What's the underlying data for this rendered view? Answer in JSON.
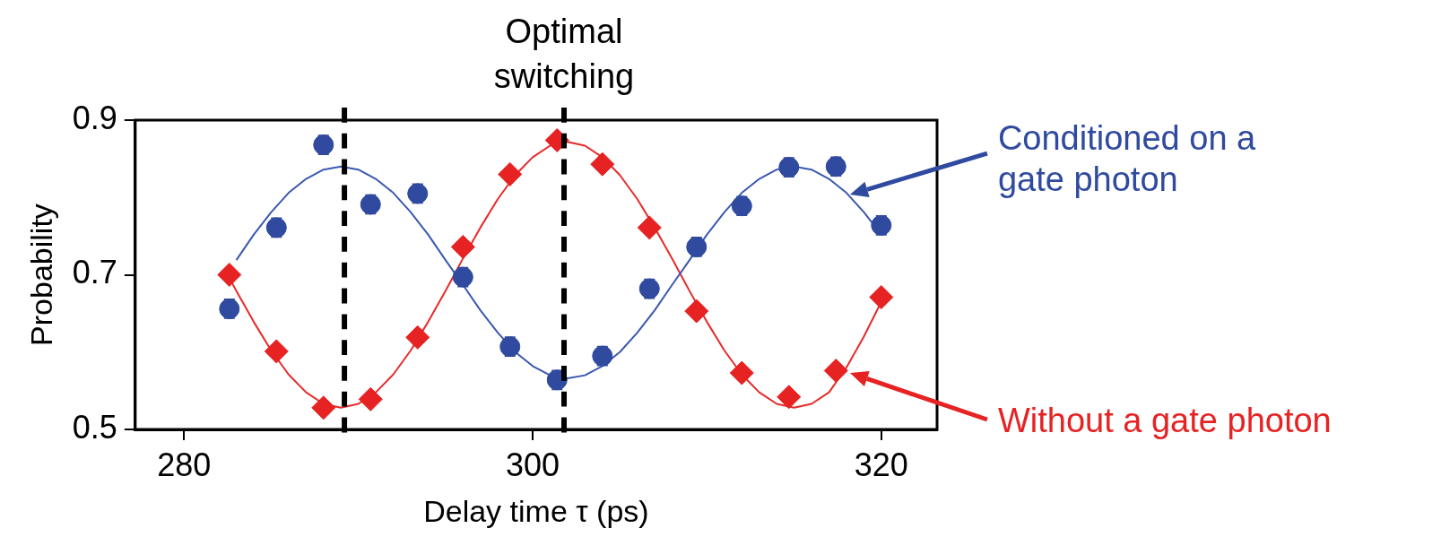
{
  "chart_data": {
    "type": "scatter",
    "xlabel": "Delay time τ (ps)",
    "ylabel": "Probability",
    "xlim": [
      277.2,
      323.2
    ],
    "xticks": [
      280,
      300,
      320
    ],
    "ylim": [
      0.5,
      0.9
    ],
    "yticks": [
      0.5,
      0.7,
      0.9
    ],
    "grid": false,
    "legend": false,
    "series": [
      {
        "color": "#2f4a9e",
        "marker": "circle",
        "x": [
          282.6,
          285.3,
          288.0,
          290.7,
          293.4,
          296.0,
          298.7,
          301.4,
          304.0,
          306.7,
          309.4,
          312.0,
          314.7,
          317.4,
          320.0
        ],
        "values": [
          0.656,
          0.761,
          0.868,
          0.791,
          0.805,
          0.697,
          0.607,
          0.564,
          0.595,
          0.682,
          0.736,
          0.789,
          0.839,
          0.84,
          0.764
        ],
        "errors": [
          0.012,
          0.012,
          0.012,
          0.012,
          0.012,
          0.012,
          0.012,
          0.012,
          0.012,
          0.012,
          0.012,
          0.012,
          0.012,
          0.012,
          0.012
        ]
      },
      {
        "color": "#e62222",
        "marker": "diamond",
        "x": [
          282.6,
          285.3,
          288.0,
          290.7,
          293.4,
          296.0,
          298.7,
          301.4,
          304.0,
          306.7,
          309.4,
          312.0,
          314.7,
          317.4,
          320.0
        ],
        "values": [
          0.7,
          0.601,
          0.528,
          0.539,
          0.619,
          0.736,
          0.83,
          0.874,
          0.843,
          0.761,
          0.653,
          0.573,
          0.542,
          0.576,
          0.671
        ]
      },
      {
        "type": "line",
        "color": "#3b58b0",
        "marker": "none",
        "x": [
          283,
          284,
          285,
          286,
          287,
          288,
          289,
          290,
          291,
          292,
          293,
          294,
          295,
          296,
          297,
          298,
          299,
          300,
          301,
          302,
          303,
          304,
          305,
          306,
          307,
          308,
          309,
          310,
          311,
          312,
          313,
          314,
          315,
          316,
          317,
          318,
          319,
          320
        ],
        "values": [
          0.719,
          0.752,
          0.781,
          0.806,
          0.824,
          0.836,
          0.84,
          0.836,
          0.824,
          0.806,
          0.781,
          0.752,
          0.719,
          0.687,
          0.654,
          0.625,
          0.6,
          0.582,
          0.57,
          0.566,
          0.57,
          0.582,
          0.6,
          0.625,
          0.654,
          0.687,
          0.719,
          0.752,
          0.781,
          0.806,
          0.824,
          0.836,
          0.84,
          0.836,
          0.824,
          0.806,
          0.781,
          0.752
        ]
      },
      {
        "type": "line",
        "color": "#e8292a",
        "marker": "none",
        "x": [
          282.6,
          283,
          284,
          285,
          286,
          287,
          288,
          289,
          290,
          291,
          292,
          293,
          294,
          295,
          296,
          297,
          298,
          299,
          300,
          301,
          302,
          303,
          304,
          305,
          306,
          307,
          308,
          309,
          310,
          311,
          312,
          313,
          314,
          315,
          316,
          317,
          318,
          319,
          320
        ],
        "values": [
          0.696,
          0.679,
          0.639,
          0.602,
          0.571,
          0.548,
          0.533,
          0.528,
          0.533,
          0.548,
          0.571,
          0.602,
          0.639,
          0.679,
          0.721,
          0.761,
          0.798,
          0.829,
          0.852,
          0.867,
          0.872,
          0.867,
          0.852,
          0.829,
          0.798,
          0.761,
          0.721,
          0.679,
          0.639,
          0.602,
          0.571,
          0.548,
          0.533,
          0.528,
          0.533,
          0.548,
          0.58,
          0.62,
          0.665
        ]
      }
    ],
    "ref_lines": [
      {
        "axis": "x",
        "value": 289.2,
        "color": "#000000",
        "line_style": "dashed"
      },
      {
        "axis": "x",
        "value": 301.8,
        "label": "Optimal switching",
        "color": "#000000",
        "line_style": "dashed"
      }
    ],
    "annotations": [
      "Conditioned on a gate photon",
      "Without a gate photon"
    ]
  }
}
